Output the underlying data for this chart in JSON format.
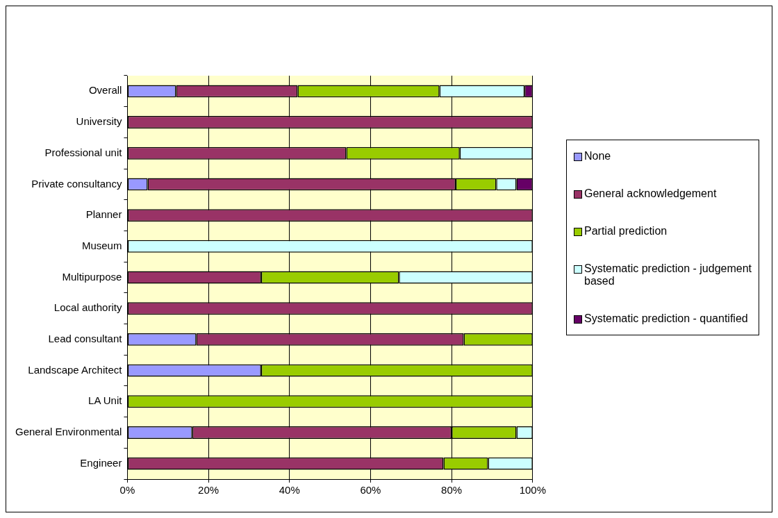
{
  "chart_data": {
    "type": "bar",
    "orientation": "horizontal",
    "stacked": true,
    "categories": [
      "Overall",
      "University",
      "Professional unit",
      "Private consultancy",
      "Planner",
      "Museum",
      "Multipurpose",
      "Local authority",
      "Lead consultant",
      "Landscape Architect",
      "LA Unit",
      "General Environmental",
      "Engineer"
    ],
    "series": [
      {
        "name": "None",
        "color": "#9999ff",
        "values": [
          12,
          0,
          0,
          5,
          0,
          0,
          0,
          0,
          17,
          33,
          0,
          16,
          0
        ]
      },
      {
        "name": "General acknowledgement",
        "color": "#993366",
        "values": [
          30,
          100,
          54,
          76,
          100,
          0,
          33,
          100,
          66,
          0,
          0,
          64,
          78
        ]
      },
      {
        "name": "Partial prediction",
        "color": "#99cc00",
        "values": [
          35,
          0,
          28,
          10,
          0,
          0,
          34,
          0,
          17,
          67,
          100,
          16,
          11
        ]
      },
      {
        "name": "Systematic prediction - judgement based",
        "color": "#ccffff",
        "values": [
          21,
          0,
          18,
          5,
          0,
          100,
          33,
          0,
          0,
          0,
          0,
          4,
          11
        ]
      },
      {
        "name": "Systematic prediction - quantified",
        "color": "#660066",
        "values": [
          2,
          0,
          0,
          4,
          0,
          0,
          0,
          0,
          0,
          0,
          0,
          0,
          0
        ]
      }
    ],
    "xlim": [
      0,
      100
    ],
    "xticks": [
      {
        "value": 0,
        "label": "0%"
      },
      {
        "value": 20,
        "label": "20%"
      },
      {
        "value": 40,
        "label": "40%"
      },
      {
        "value": 60,
        "label": "60%"
      },
      {
        "value": 80,
        "label": "80%"
      },
      {
        "value": 100,
        "label": "100%"
      }
    ],
    "grid": "x",
    "legend": "right"
  }
}
